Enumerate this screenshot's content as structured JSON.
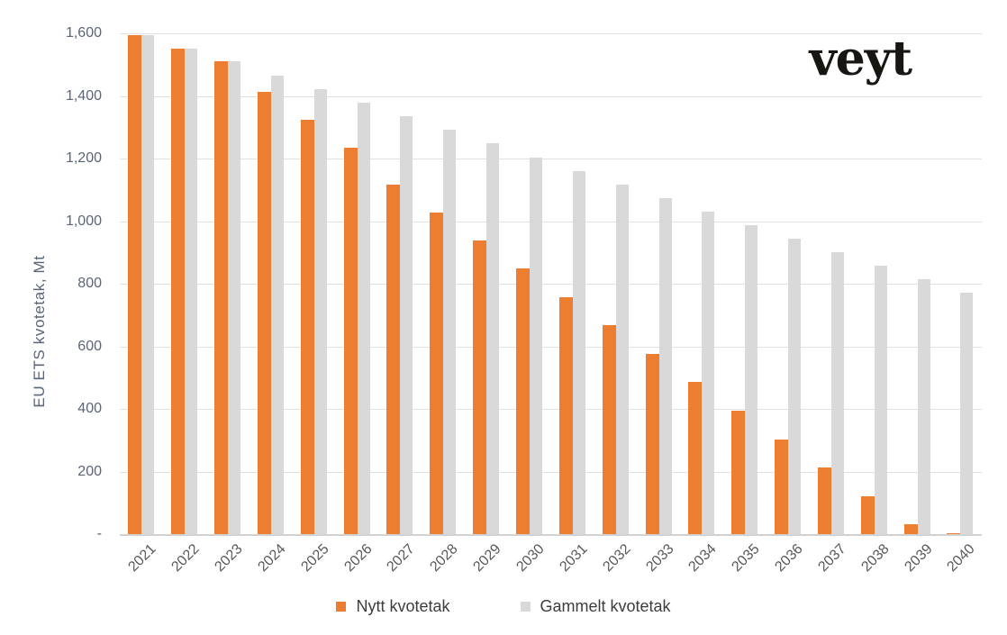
{
  "logo": {
    "text": "veyt"
  },
  "chart_data": {
    "type": "bar",
    "title": "",
    "xlabel": "",
    "ylabel": "EU ETS kvotetak, Mt",
    "unit": "Mt",
    "ylim": [
      0,
      1600
    ],
    "ytick_step": 200,
    "ytick_labels": [
      "1,600",
      "1,400",
      "1,200",
      "1,000",
      "800",
      "600",
      "400",
      "200",
      "-"
    ],
    "grid": true,
    "legend_position": "bottom",
    "categories": [
      "2021",
      "2022",
      "2023",
      "2024",
      "2025",
      "2026",
      "2027",
      "2028",
      "2029",
      "2030",
      "2031",
      "2032",
      "2033",
      "2034",
      "2035",
      "2036",
      "2037",
      "2038",
      "2039",
      "2040"
    ],
    "series": [
      {
        "name": "Nytt kvotetak",
        "color": "#ED7D31",
        "values": [
          1595,
          1552,
          1510,
          1413,
          1324,
          1235,
          1118,
          1028,
          938,
          848,
          757,
          667,
          577,
          487,
          395,
          303,
          212,
          122,
          31,
          3
        ]
      },
      {
        "name": "Gammelt kvotetak",
        "color": "#D9D9D9",
        "values": [
          1595,
          1552,
          1510,
          1465,
          1421,
          1378,
          1334,
          1291,
          1248,
          1204,
          1161,
          1118,
          1074,
          1031,
          987,
          944,
          900,
          857,
          813,
          770
        ]
      }
    ]
  }
}
